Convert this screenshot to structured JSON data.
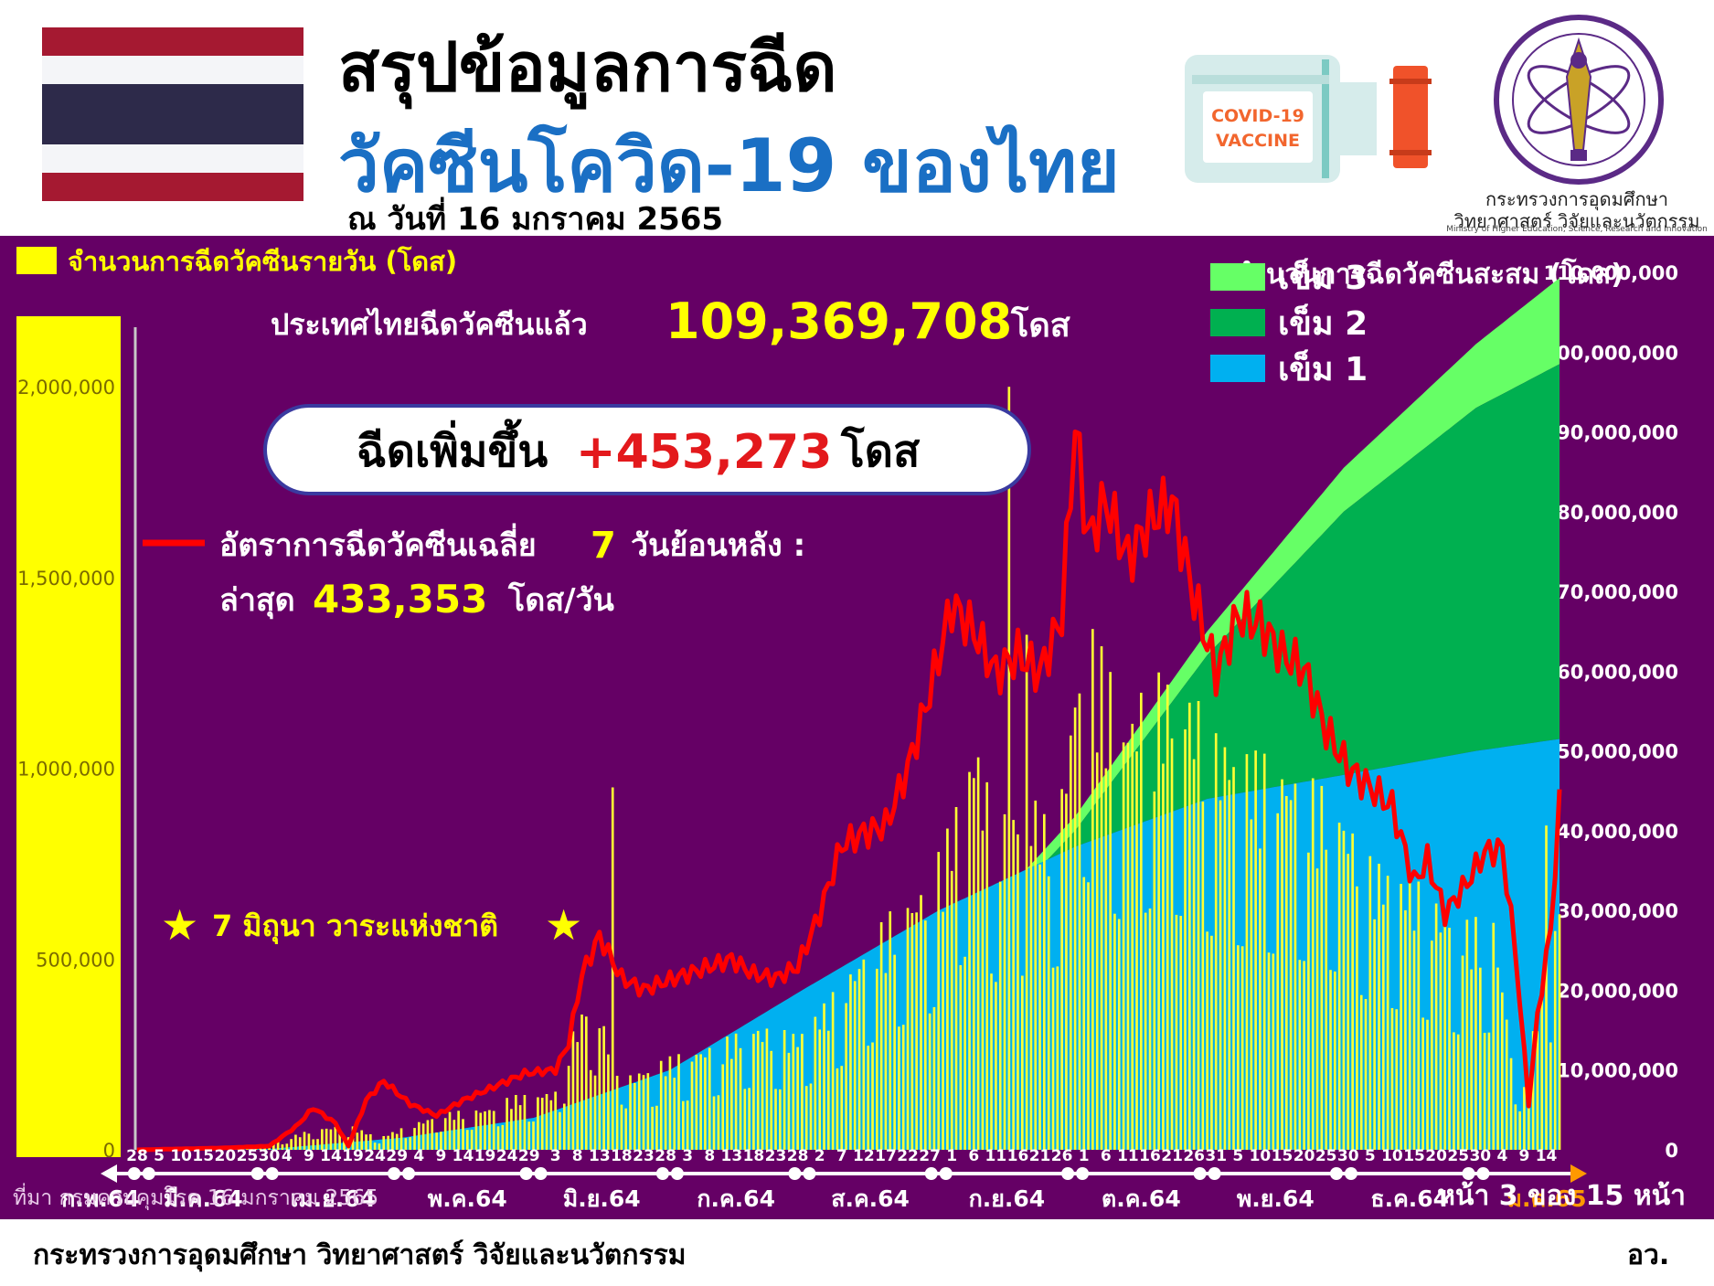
{
  "header": {
    "title_line1": "สรุปข้อมูลการฉีด",
    "title_line2": "วัคซีนโควิด-19 ของไทย",
    "date_line": "ณ วันที่ 16 มกราคม 2565",
    "vaccine_label_1": "COVID-19",
    "vaccine_label_2": "VACCINE",
    "ministry_name_th_1": "กระทรวงการอุดมศึกษา",
    "ministry_name_th_2": "วิทยาศาสตร์ วิจัยและนวัตกรรม",
    "ministry_name_en": "Ministry of Higher Education, Science, Research and Innovation",
    "flag_colors": [
      "#a51931",
      "#f4f5f8",
      "#2d2a4a",
      "#f4f5f8",
      "#a51931"
    ]
  },
  "footer": {
    "ministry": "กระทรวงการอุดมศึกษา วิทยาศาสตร์ วิจัยและนวัตกรรม",
    "abbr": "อว."
  },
  "chart_data": {
    "type": "bar",
    "left_axis_title": "จำนวนการฉีดวัคซีนรายวัน (โดส)",
    "right_axis_title": "จำนวนการฉีดวัคซีนสะสม (โดส)",
    "left_ticks": [
      "0",
      "500,000",
      "1,000,000",
      "1,500,000",
      "2,000,000"
    ],
    "left_tick_values": [
      0,
      500000,
      1000000,
      1500000,
      2000000
    ],
    "left_ylim": [
      0,
      2300000
    ],
    "right_ticks": [
      "0",
      "10,000,000",
      "20,000,000",
      "30,000,000",
      "40,000,000",
      "50,000,000",
      "60,000,000",
      "70,000,000",
      "80,000,000",
      "90,000,000",
      "100,000,000",
      "110,000,000"
    ],
    "right_tick_values": [
      0,
      10000000,
      20000000,
      30000000,
      40000000,
      50000000,
      60000000,
      70000000,
      80000000,
      90000000,
      100000000,
      110000000
    ],
    "right_ylim": [
      0,
      110000000
    ],
    "legend": [
      {
        "name": "เข็ม 3",
        "color": "#66ff66"
      },
      {
        "name": "เข็ม 2",
        "color": "#00b050"
      },
      {
        "name": "เข็ม 1",
        "color": "#00b0f0"
      }
    ],
    "total_label": "ประเทศไทยฉีดวัคซีนแล้ว",
    "total_value": "109,369,708",
    "total_unit": "โดส",
    "increase_label": "ฉีดเพิ่มขึ้น",
    "increase_value": "+453,273",
    "increase_unit": "โดส",
    "avg_label_1": "อัตราการฉีดวัคซีนเฉลี่ย",
    "avg_days": "7",
    "avg_label_2": "วันย้อนหลัง :",
    "avg_latest_label": "ล่าสุด",
    "avg_latest_value": "433,353",
    "avg_latest_unit": "โดส/วัน",
    "annotation": "7 มิถุนา วาระแห่งชาติ",
    "source": "ที่มา กรมควบคุมโรค 16 มกราคม 2565",
    "page_label": "หน้า 3 ของ 15 หน้า",
    "months": [
      "ก.พ.64",
      "มี.ค.64",
      "เม.ย.64",
      "พ.ค.64",
      "มิ.ย.64",
      "ก.ค.64",
      "ส.ค.64",
      "ก.ย.64",
      "ต.ค.64",
      "พ.ย.64",
      "ธ.ค.64",
      "ม.ค.65"
    ],
    "month_start_day": [
      0,
      1,
      29,
      60,
      90,
      121,
      151,
      182,
      213,
      243,
      274,
      304,
      335
    ],
    "day_ticks": [
      {
        "day": 0,
        "label": "28"
      },
      {
        "day": 5,
        "label": "5"
      },
      {
        "day": 10,
        "label": "10"
      },
      {
        "day": 15,
        "label": "15"
      },
      {
        "day": 20,
        "label": "20"
      },
      {
        "day": 25,
        "label": "25"
      },
      {
        "day": 30,
        "label": "30"
      },
      {
        "day": 34,
        "label": "4"
      },
      {
        "day": 39,
        "label": "9"
      },
      {
        "day": 44,
        "label": "14"
      },
      {
        "day": 49,
        "label": "19"
      },
      {
        "day": 54,
        "label": "24"
      },
      {
        "day": 59,
        "label": "29"
      },
      {
        "day": 64,
        "label": "4"
      },
      {
        "day": 69,
        "label": "9"
      },
      {
        "day": 74,
        "label": "14"
      },
      {
        "day": 79,
        "label": "19"
      },
      {
        "day": 84,
        "label": "24"
      },
      {
        "day": 89,
        "label": "29"
      },
      {
        "day": 95,
        "label": "3"
      },
      {
        "day": 100,
        "label": "8"
      },
      {
        "day": 105,
        "label": "13"
      },
      {
        "day": 110,
        "label": "18"
      },
      {
        "day": 115,
        "label": "23"
      },
      {
        "day": 120,
        "label": "28"
      },
      {
        "day": 125,
        "label": "3"
      },
      {
        "day": 130,
        "label": "8"
      },
      {
        "day": 135,
        "label": "13"
      },
      {
        "day": 140,
        "label": "18"
      },
      {
        "day": 145,
        "label": "23"
      },
      {
        "day": 150,
        "label": "28"
      },
      {
        "day": 155,
        "label": "2"
      },
      {
        "day": 160,
        "label": "7"
      },
      {
        "day": 165,
        "label": "12"
      },
      {
        "day": 170,
        "label": "17"
      },
      {
        "day": 175,
        "label": "22"
      },
      {
        "day": 180,
        "label": "27"
      },
      {
        "day": 185,
        "label": "1"
      },
      {
        "day": 190,
        "label": "6"
      },
      {
        "day": 195,
        "label": "11"
      },
      {
        "day": 200,
        "label": "16"
      },
      {
        "day": 205,
        "label": "21"
      },
      {
        "day": 210,
        "label": "26"
      },
      {
        "day": 215,
        "label": "1"
      },
      {
        "day": 220,
        "label": "6"
      },
      {
        "day": 225,
        "label": "11"
      },
      {
        "day": 230,
        "label": "16"
      },
      {
        "day": 235,
        "label": "21"
      },
      {
        "day": 240,
        "label": "26"
      },
      {
        "day": 245,
        "label": "31"
      },
      {
        "day": 250,
        "label": "5"
      },
      {
        "day": 255,
        "label": "10"
      },
      {
        "day": 260,
        "label": "15"
      },
      {
        "day": 265,
        "label": "20"
      },
      {
        "day": 270,
        "label": "25"
      },
      {
        "day": 275,
        "label": "30"
      },
      {
        "day": 280,
        "label": "5"
      },
      {
        "day": 285,
        "label": "10"
      },
      {
        "day": 290,
        "label": "15"
      },
      {
        "day": 295,
        "label": "20"
      },
      {
        "day": 300,
        "label": "25"
      },
      {
        "day": 305,
        "label": "30"
      },
      {
        "day": 310,
        "label": "4"
      },
      {
        "day": 315,
        "label": "9"
      },
      {
        "day": 320,
        "label": "14"
      }
    ],
    "total_days": 323,
    "daily_doses_keypoints": [
      [
        0,
        0
      ],
      [
        15,
        3000
      ],
      [
        28,
        8000
      ],
      [
        40,
        50000
      ],
      [
        48,
        60000
      ],
      [
        55,
        30000
      ],
      [
        62,
        60000
      ],
      [
        70,
        90000
      ],
      [
        80,
        100000
      ],
      [
        85,
        130000
      ],
      [
        95,
        140000
      ],
      [
        98,
        260000
      ],
      [
        103,
        380000
      ],
      [
        108,
        250000
      ],
      [
        112,
        180000
      ],
      [
        120,
        220000
      ],
      [
        130,
        250000
      ],
      [
        140,
        300000
      ],
      [
        150,
        280000
      ],
      [
        160,
        400000
      ],
      [
        170,
        560000
      ],
      [
        180,
        650000
      ],
      [
        185,
        800000
      ],
      [
        190,
        1000000
      ],
      [
        195,
        800000
      ],
      [
        205,
        850000
      ],
      [
        210,
        880000
      ],
      [
        215,
        1300000
      ],
      [
        225,
        1050000
      ],
      [
        230,
        1150000
      ],
      [
        240,
        1100000
      ],
      [
        245,
        1000000
      ],
      [
        255,
        950000
      ],
      [
        265,
        900000
      ],
      [
        272,
        850000
      ],
      [
        280,
        700000
      ],
      [
        290,
        650000
      ],
      [
        300,
        550000
      ],
      [
        308,
        560000
      ],
      [
        312,
        250000
      ],
      [
        315,
        150000
      ],
      [
        318,
        350000
      ],
      [
        323,
        620000
      ]
    ],
    "avg7_keypoints": [
      [
        0,
        0
      ],
      [
        20,
        5000
      ],
      [
        30,
        10000
      ],
      [
        36,
        60000
      ],
      [
        40,
        110000
      ],
      [
        45,
        70000
      ],
      [
        48,
        10000
      ],
      [
        52,
        130000
      ],
      [
        56,
        180000
      ],
      [
        62,
        120000
      ],
      [
        68,
        90000
      ],
      [
        74,
        130000
      ],
      [
        80,
        160000
      ],
      [
        88,
        200000
      ],
      [
        95,
        210000
      ],
      [
        98,
        280000
      ],
      [
        101,
        460000
      ],
      [
        105,
        560000
      ],
      [
        110,
        450000
      ],
      [
        115,
        420000
      ],
      [
        122,
        450000
      ],
      [
        130,
        480000
      ],
      [
        135,
        500000
      ],
      [
        140,
        460000
      ],
      [
        145,
        450000
      ],
      [
        150,
        480000
      ],
      [
        155,
        620000
      ],
      [
        160,
        800000
      ],
      [
        165,
        830000
      ],
      [
        170,
        850000
      ],
      [
        175,
        1000000
      ],
      [
        180,
        1200000
      ],
      [
        185,
        1430000
      ],
      [
        190,
        1360000
      ],
      [
        195,
        1250000
      ],
      [
        200,
        1300000
      ],
      [
        205,
        1250000
      ],
      [
        210,
        1400000
      ],
      [
        213,
        1900000
      ],
      [
        216,
        1600000
      ],
      [
        220,
        1700000
      ],
      [
        225,
        1550000
      ],
      [
        230,
        1650000
      ],
      [
        235,
        1700000
      ],
      [
        240,
        1450000
      ],
      [
        245,
        1250000
      ],
      [
        250,
        1400000
      ],
      [
        255,
        1380000
      ],
      [
        260,
        1300000
      ],
      [
        265,
        1260000
      ],
      [
        270,
        1100000
      ],
      [
        275,
        1000000
      ],
      [
        280,
        950000
      ],
      [
        285,
        900000
      ],
      [
        290,
        700000
      ],
      [
        293,
        760000
      ],
      [
        297,
        620000
      ],
      [
        302,
        700000
      ],
      [
        306,
        780000
      ],
      [
        310,
        790000
      ],
      [
        313,
        520000
      ],
      [
        316,
        120000
      ],
      [
        318,
        350000
      ],
      [
        321,
        580000
      ],
      [
        323,
        900000
      ]
    ],
    "cumulative_dose1_keypoints": [
      [
        0,
        0
      ],
      [
        30,
        100000
      ],
      [
        60,
        1500000
      ],
      [
        90,
        4000000
      ],
      [
        121,
        10000000
      ],
      [
        151,
        20000000
      ],
      [
        182,
        30000000
      ],
      [
        213,
        38000000
      ],
      [
        243,
        44000000
      ],
      [
        274,
        47000000
      ],
      [
        304,
        50000000
      ],
      [
        323,
        51500000
      ]
    ],
    "cumulative_dose2_keypoints": [
      [
        0,
        0
      ],
      [
        30,
        50000
      ],
      [
        60,
        600000
      ],
      [
        90,
        1800000
      ],
      [
        121,
        3500000
      ],
      [
        151,
        10000000
      ],
      [
        182,
        22000000
      ],
      [
        213,
        40000000
      ],
      [
        243,
        62000000
      ],
      [
        274,
        80000000
      ],
      [
        304,
        93000000
      ],
      [
        323,
        98500000
      ]
    ],
    "cumulative_dose3_keypoints": [
      [
        0,
        0
      ],
      [
        90,
        10000
      ],
      [
        121,
        100000
      ],
      [
        151,
        500000
      ],
      [
        182,
        1200000
      ],
      [
        213,
        1800000
      ],
      [
        243,
        3000000
      ],
      [
        274,
        5500000
      ],
      [
        304,
        8000000
      ],
      [
        323,
        10800000
      ]
    ],
    "spike_keypoints": [
      [
        198,
        2000000
      ],
      [
        202,
        1350000
      ],
      [
        206,
        880000
      ],
      [
        220,
        1000000
      ],
      [
        320,
        850000
      ],
      [
        108,
        950000
      ]
    ]
  }
}
